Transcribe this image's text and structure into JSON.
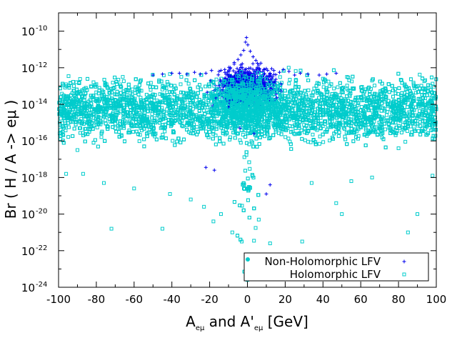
{
  "chart_data": {
    "type": "scatter",
    "title": "",
    "xlabel_parts": [
      "A",
      "eμ",
      " and A'",
      "eμ",
      " [GeV]"
    ],
    "ylabel": "Br ( H / A -> eμ )",
    "xlim": [
      -100,
      100
    ],
    "ylim_log10": [
      -24,
      -9
    ],
    "y_scale": "log",
    "grid": false,
    "legend_position": "bottom-right",
    "x_ticks": [
      {
        "value": -100,
        "label": "-100"
      },
      {
        "value": -80,
        "label": "-80"
      },
      {
        "value": -60,
        "label": "-60"
      },
      {
        "value": -40,
        "label": "-40"
      },
      {
        "value": -20,
        "label": "-20"
      },
      {
        "value": 0,
        "label": "0"
      },
      {
        "value": 20,
        "label": "20"
      },
      {
        "value": 40,
        "label": "40"
      },
      {
        "value": 60,
        "label": "60"
      },
      {
        "value": 80,
        "label": "80"
      },
      {
        "value": 100,
        "label": "100"
      }
    ],
    "y_ticks": [
      {
        "exp": -24,
        "base": "10",
        "sup": "-24"
      },
      {
        "exp": -22,
        "base": "10",
        "sup": "-22"
      },
      {
        "exp": -20,
        "base": "10",
        "sup": "-20"
      },
      {
        "exp": -18,
        "base": "10",
        "sup": "-18"
      },
      {
        "exp": -16,
        "base": "10",
        "sup": "-16"
      },
      {
        "exp": -14,
        "base": "10",
        "sup": "-14"
      },
      {
        "exp": -12,
        "base": "10",
        "sup": "-12"
      },
      {
        "exp": -10,
        "base": "10",
        "sup": "-10"
      }
    ],
    "series": [
      {
        "name": "Non-Holomorphic LFV",
        "marker": "plus",
        "color": "#0000ee",
        "band": {
          "x_range": [
            -25,
            25
          ],
          "log10_center": -13.0,
          "log10_spread": 0.9
        },
        "points": [
          {
            "x": -0.5,
            "log10y": -10.35
          },
          {
            "x": -1.0,
            "log10y": -10.6
          },
          {
            "x": 0.2,
            "log10y": -10.75
          },
          {
            "x": -2.0,
            "log10y": -11.05
          },
          {
            "x": 1.5,
            "log10y": -11.1
          },
          {
            "x": -3.5,
            "log10y": -11.3
          },
          {
            "x": 3.0,
            "log10y": -11.4
          },
          {
            "x": -5.0,
            "log10y": -11.55
          },
          {
            "x": 4.5,
            "log10y": -11.6
          },
          {
            "x": -7.0,
            "log10y": -11.8
          },
          {
            "x": 6.0,
            "log10y": -11.85
          },
          {
            "x": -9.0,
            "log10y": -12.0
          },
          {
            "x": 10.0,
            "log10y": -12.05
          },
          {
            "x": -12.0,
            "log10y": -12.1
          },
          {
            "x": 14.0,
            "log10y": -12.15
          },
          {
            "x": -15.0,
            "log10y": -12.2
          },
          {
            "x": 17.0,
            "log10y": -12.25
          },
          {
            "x": -19.0,
            "log10y": -12.15
          },
          {
            "x": 19.0,
            "log10y": -12.1
          },
          {
            "x": -22.0,
            "log10y": -12.3
          },
          {
            "x": 22.0,
            "log10y": -12.2
          },
          {
            "x": -25.0,
            "log10y": -12.35
          },
          {
            "x": 25.0,
            "log10y": -12.4
          },
          {
            "x": -28.0,
            "log10y": -12.25
          },
          {
            "x": 28.0,
            "log10y": -12.3
          },
          {
            "x": -32.0,
            "log10y": -12.35
          },
          {
            "x": 32.0,
            "log10y": -12.35
          },
          {
            "x": -36.0,
            "log10y": -12.3
          },
          {
            "x": 38.0,
            "log10y": -12.4
          },
          {
            "x": -40.0,
            "log10y": -12.3
          },
          {
            "x": 42.0,
            "log10y": -12.35
          },
          {
            "x": -45.0,
            "log10y": -12.35
          },
          {
            "x": 47.0,
            "log10y": -12.3
          },
          {
            "x": -50.0,
            "log10y": -12.4
          },
          {
            "x": -22.0,
            "log10y": -17.45
          },
          {
            "x": -17.5,
            "log10y": -17.6
          },
          {
            "x": 10.0,
            "log10y": -18.9
          },
          {
            "x": 12.0,
            "log10y": -18.4
          },
          {
            "x": -4.0,
            "log10y": -15.3
          },
          {
            "x": 3.5,
            "log10y": -15.6
          }
        ]
      },
      {
        "name": "Holomorphic LFV",
        "marker": "square",
        "color": "#00cccc",
        "band": {
          "x_range": [
            -100,
            100
          ],
          "log10_center": -14.3,
          "log10_spread": 1.3
        },
        "points": [
          {
            "x": -96,
            "log10y": -17.8
          },
          {
            "x": -87,
            "log10y": -17.8
          },
          {
            "x": -76,
            "log10y": -18.3
          },
          {
            "x": -60,
            "log10y": -18.6
          },
          {
            "x": -41,
            "log10y": -18.9
          },
          {
            "x": -30,
            "log10y": -19.2
          },
          {
            "x": -23,
            "log10y": -19.6
          },
          {
            "x": -18,
            "log10y": -20.4
          },
          {
            "x": -14,
            "log10y": -20.0
          },
          {
            "x": -45,
            "log10y": -20.8
          },
          {
            "x": -72,
            "log10y": -20.8
          },
          {
            "x": -8,
            "log10y": -21.0
          },
          {
            "x": -3,
            "log10y": -21.5
          },
          {
            "x": 6,
            "log10y": -20.3
          },
          {
            "x": 12,
            "log10y": -21.6
          },
          {
            "x": 29,
            "log10y": -21.5
          },
          {
            "x": 34,
            "log10y": -18.3
          },
          {
            "x": 47,
            "log10y": -19.4
          },
          {
            "x": 50,
            "log10y": -20.0
          },
          {
            "x": 55,
            "log10y": -18.2
          },
          {
            "x": 66,
            "log10y": -18.0
          },
          {
            "x": 85,
            "log10y": -21.0
          },
          {
            "x": 90,
            "log10y": -20.0
          },
          {
            "x": 98,
            "log10y": -17.9
          },
          {
            "x": 0,
            "log10y": -23.6
          },
          {
            "x": -0.5,
            "log10y": -22.8
          },
          {
            "x": 0.5,
            "log10y": -22.2
          },
          {
            "x": -99,
            "log10y": -15.9
          },
          {
            "x": 99,
            "log10y": -15.9
          },
          {
            "x": -90,
            "log10y": -16.5
          },
          {
            "x": 80,
            "log10y": -16.4
          },
          {
            "x": -66,
            "log10y": -12.5
          },
          {
            "x": 66,
            "log10y": -12.7
          },
          {
            "x": -35,
            "log10y": -12.5
          },
          {
            "x": 40,
            "log10y": -12.6
          },
          {
            "x": -80,
            "log10y": -12.9
          },
          {
            "x": 88,
            "log10y": -12.9
          }
        ]
      }
    ]
  }
}
